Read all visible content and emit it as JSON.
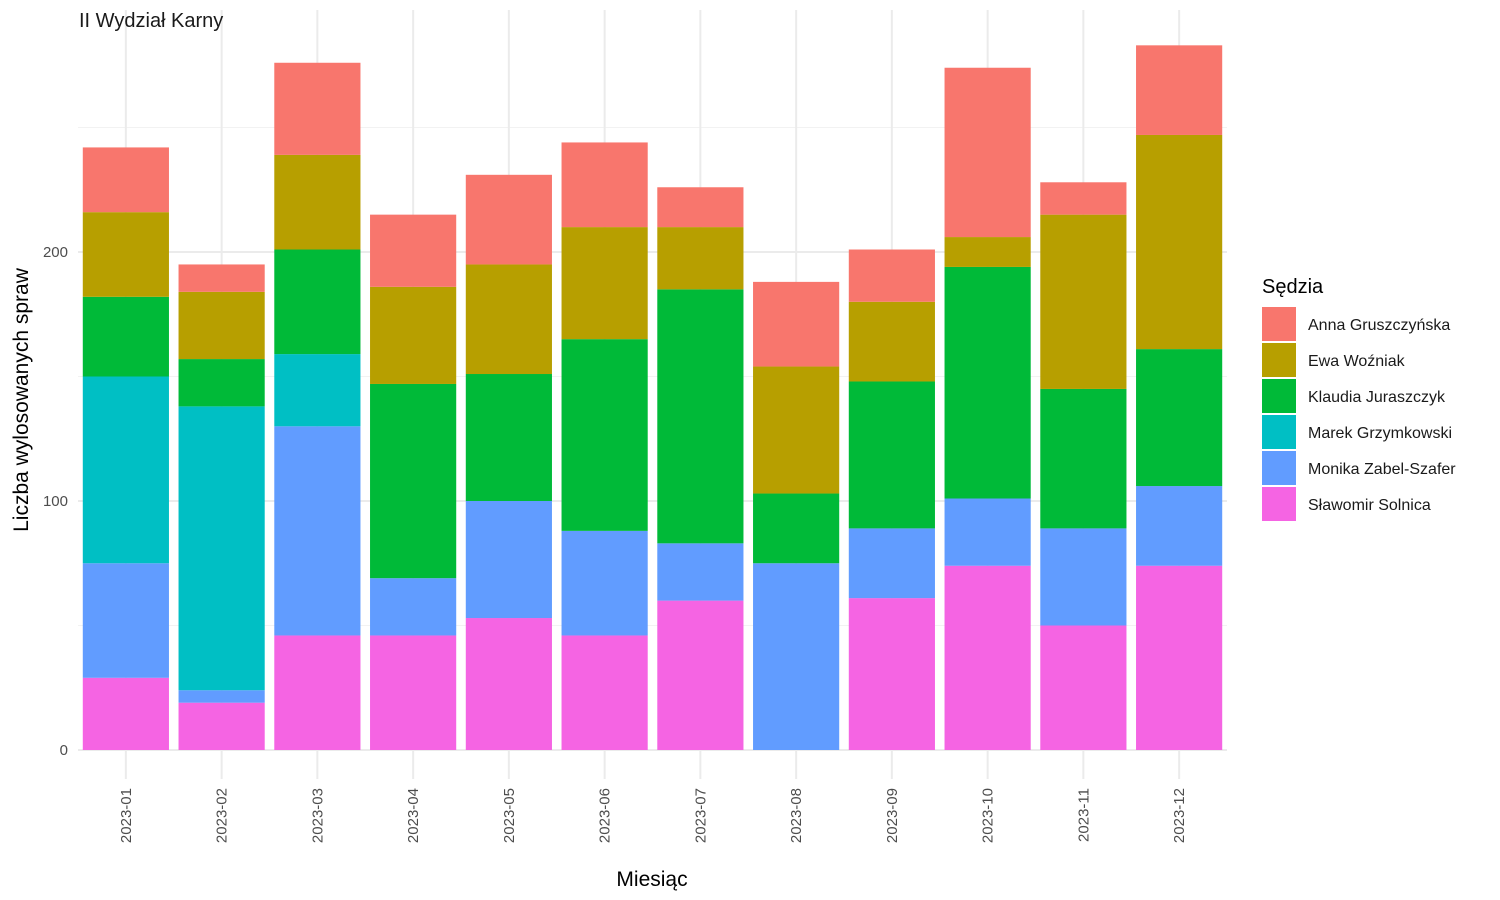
{
  "chart_data": {
    "type": "bar",
    "stacked": true,
    "facet_title": "II Wydział Karny",
    "xlabel": "Miesiąc",
    "ylabel": "Liczba wylosowanych spraw",
    "ylim": [
      0,
      290
    ],
    "yticks": [
      0,
      100,
      200
    ],
    "grid": true,
    "legend": {
      "title": "Sędzia",
      "position": "right"
    },
    "categories": [
      "2023-01",
      "2023-02",
      "2023-03",
      "2023-04",
      "2023-05",
      "2023-06",
      "2023-07",
      "2023-08",
      "2023-09",
      "2023-10",
      "2023-11",
      "2023-12"
    ],
    "series": [
      {
        "name": "Sławomir Solnica",
        "color": "#F564E3",
        "values": [
          29,
          19,
          46,
          46,
          53,
          46,
          60,
          0,
          61,
          74,
          50,
          74
        ]
      },
      {
        "name": "Monika Zabel-Szafer",
        "color": "#619CFF",
        "values": [
          46,
          5,
          84,
          23,
          47,
          42,
          23,
          75,
          28,
          27,
          39,
          32
        ]
      },
      {
        "name": "Marek Grzymkowski",
        "color": "#00BFC4",
        "values": [
          75,
          114,
          29,
          0,
          0,
          0,
          0,
          0,
          0,
          0,
          0,
          0
        ]
      },
      {
        "name": "Klaudia Juraszczyk",
        "color": "#00BA38",
        "values": [
          32,
          19,
          42,
          78,
          51,
          77,
          102,
          28,
          59,
          93,
          56,
          55
        ]
      },
      {
        "name": "Ewa Woźniak",
        "color": "#B79F00",
        "values": [
          34,
          27,
          38,
          39,
          44,
          45,
          25,
          51,
          32,
          12,
          70,
          86
        ]
      },
      {
        "name": "Anna Gruszczyńska",
        "color": "#F8766D",
        "values": [
          26,
          11,
          37,
          29,
          36,
          34,
          16,
          34,
          21,
          68,
          13,
          36
        ]
      }
    ],
    "legend_order": [
      "Anna Gruszczyńska",
      "Ewa Woźniak",
      "Klaudia Juraszczyk",
      "Marek Grzymkowski",
      "Monika Zabel-Szafer",
      "Sławomir Solnica"
    ]
  }
}
